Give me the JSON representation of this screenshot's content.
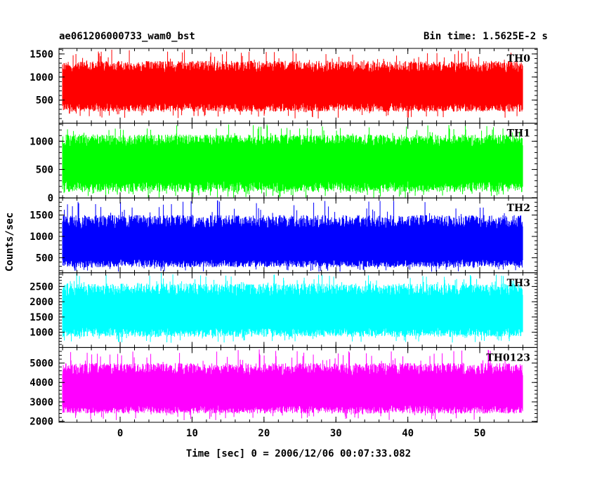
{
  "header": {
    "title": "ae061206000733_wam0_bst",
    "bin_time": "Bin time: 1.5625E-2 s"
  },
  "chart_data": {
    "type": "line",
    "xlabel": "Time [sec] 0 = 2006/12/06 00:07:33.082",
    "ylabel": "Counts/sec",
    "xlim": [
      -8.5,
      58
    ],
    "xticks": [
      0,
      10,
      20,
      30,
      40,
      50
    ],
    "data_x_range": [
      -8,
      56
    ],
    "panels": [
      {
        "name": "TH0",
        "color": "#ff0000",
        "ylim": [
          0,
          1620
        ],
        "yticks": [
          500,
          1000,
          1500
        ],
        "baseline": 800,
        "typical_low": 250,
        "typical_high": 1350,
        "min": 100,
        "max": 1600
      },
      {
        "name": "TH1",
        "color": "#00ff00",
        "ylim": [
          -5,
          1320
        ],
        "yticks": [
          0,
          500,
          1000
        ],
        "baseline": 650,
        "typical_low": 100,
        "typical_high": 1120,
        "min": 0,
        "max": 1300
      },
      {
        "name": "TH2",
        "color": "#0000ff",
        "ylim": [
          150,
          1900
        ],
        "yticks": [
          500,
          1000,
          1500
        ],
        "baseline": 800,
        "typical_low": 280,
        "typical_high": 1500,
        "min": 170,
        "max": 1880
      },
      {
        "name": "TH3",
        "color": "#00ffff",
        "ylim": [
          500,
          2950
        ],
        "yticks": [
          1000,
          1500,
          2000,
          2500
        ],
        "baseline": 1700,
        "typical_low": 850,
        "typical_high": 2600,
        "min": 650,
        "max": 2950
      },
      {
        "name": "TH0123",
        "color": "#ff00ff",
        "ylim": [
          1950,
          5800
        ],
        "yticks": [
          2000,
          3000,
          4000,
          5000
        ],
        "baseline": 3600,
        "typical_low": 2400,
        "typical_high": 5000,
        "min": 2050,
        "max": 5750
      }
    ]
  }
}
